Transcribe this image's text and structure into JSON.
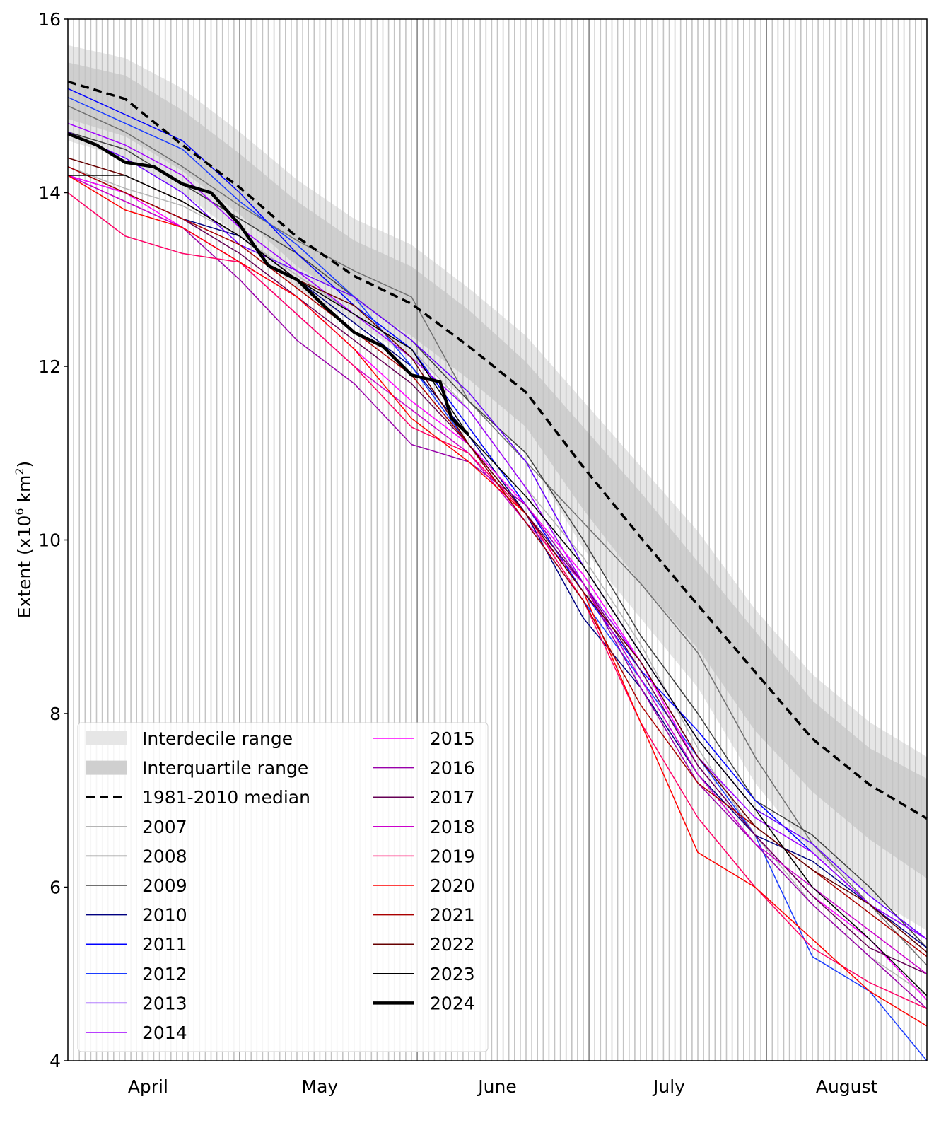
{
  "chart_data": {
    "type": "line",
    "ylabel": "Extent (x10",
    "ylabel_sup": "6",
    "ylabel_unit": " km",
    "ylabel_unit_sup": "2",
    "ylabel_close": ")",
    "ylim": [
      4,
      16
    ],
    "yticks": [
      "4",
      "6",
      "8",
      "10",
      "12",
      "14",
      "16"
    ],
    "x_range": [
      "April 1",
      "August 29"
    ],
    "x_month_labels": [
      "April",
      "May",
      "June",
      "July",
      "August"
    ],
    "grid": "daily vertical lines, darker at month boundaries",
    "legend_position": "lower-left",
    "x_sample_days_since_apr1": [
      0,
      10,
      20,
      30,
      40,
      50,
      60,
      70,
      80,
      90,
      100,
      110,
      120,
      130,
      140,
      150
    ],
    "interdecile": {
      "name": "Interdecile range",
      "color": "#e6e6e6",
      "high": [
        15.7,
        15.55,
        15.2,
        14.7,
        14.15,
        13.7,
        13.4,
        12.9,
        12.35,
        11.6,
        10.85,
        10.1,
        9.2,
        8.45,
        7.9,
        7.5
      ],
      "low": [
        14.6,
        14.4,
        14.0,
        13.5,
        12.9,
        12.5,
        12.1,
        11.6,
        11.0,
        9.9,
        9.1,
        8.3,
        7.2,
        6.4,
        5.9,
        5.5
      ]
    },
    "interquartile": {
      "name": "Interquartile range",
      "color": "#cfcfcf",
      "high": [
        15.5,
        15.35,
        14.95,
        14.45,
        13.9,
        13.45,
        13.15,
        12.65,
        12.05,
        11.3,
        10.55,
        9.75,
        8.95,
        8.15,
        7.6,
        7.25
      ],
      "low": [
        14.85,
        14.65,
        14.25,
        13.75,
        13.15,
        12.75,
        12.35,
        11.85,
        11.3,
        10.35,
        9.5,
        8.75,
        7.8,
        7.1,
        6.55,
        6.1
      ]
    },
    "median": {
      "name": "1981-2010 median",
      "color": "#000000",
      "values": [
        15.28,
        15.08,
        14.55,
        14.06,
        13.49,
        13.04,
        12.72,
        12.23,
        11.7,
        10.84,
        10.03,
        9.25,
        8.48,
        7.71,
        7.18,
        6.79
      ]
    },
    "series": [
      {
        "name": "2007",
        "color": "#b4b4b4",
        "width": 1.5,
        "values": [
          14.3,
          14.05,
          13.85,
          13.5,
          13.05,
          12.6,
          12.2,
          11.5,
          10.6,
          9.8,
          8.8,
          7.6,
          6.6,
          5.8,
          5.2,
          4.75
        ]
      },
      {
        "name": "2008",
        "color": "#707070",
        "width": 1.5,
        "values": [
          15.0,
          14.7,
          14.3,
          13.85,
          13.45,
          13.1,
          12.8,
          11.6,
          10.9,
          10.2,
          9.5,
          8.7,
          7.5,
          6.5,
          5.8,
          5.1
        ]
      },
      {
        "name": "2009",
        "color": "#404040",
        "width": 1.5,
        "values": [
          14.7,
          14.5,
          14.1,
          13.7,
          13.3,
          12.8,
          12.3,
          11.6,
          11.0,
          10.0,
          8.9,
          8.0,
          7.0,
          6.6,
          6.0,
          5.3
        ]
      },
      {
        "name": "2010",
        "color": "#000080",
        "width": 1.5,
        "values": [
          14.2,
          14.0,
          13.7,
          13.5,
          13.0,
          12.5,
          12.0,
          11.2,
          10.3,
          9.1,
          8.3,
          7.3,
          6.6,
          6.3,
          5.8,
          5.3
        ]
      },
      {
        "name": "2011",
        "color": "#0000ff",
        "width": 1.5,
        "values": [
          15.2,
          14.9,
          14.6,
          14.0,
          13.3,
          12.7,
          12.2,
          11.3,
          10.4,
          9.4,
          8.5,
          7.8,
          7.0,
          6.4,
          5.8,
          5.4
        ]
      },
      {
        "name": "2012",
        "color": "#1a3cff",
        "width": 1.5,
        "values": [
          15.1,
          14.8,
          14.5,
          13.9,
          13.4,
          12.8,
          12.0,
          11.1,
          10.2,
          9.3,
          8.4,
          7.5,
          6.6,
          5.2,
          4.8,
          4.0
        ]
      },
      {
        "name": "2013",
        "color": "#6a00ff",
        "width": 1.5,
        "values": [
          14.7,
          14.4,
          14.0,
          13.4,
          13.1,
          12.8,
          12.3,
          11.7,
          10.9,
          9.7,
          8.7,
          7.7,
          6.9,
          6.5,
          5.9,
          5.4
        ]
      },
      {
        "name": "2014",
        "color": "#a000ff",
        "width": 1.5,
        "values": [
          14.8,
          14.55,
          14.2,
          13.6,
          13.1,
          12.6,
          12.1,
          11.5,
          10.6,
          9.5,
          8.6,
          7.5,
          6.8,
          6.4,
          5.8,
          5.4
        ]
      },
      {
        "name": "2015",
        "color": "#ff00ff",
        "width": 1.5,
        "values": [
          14.2,
          14.0,
          13.6,
          13.2,
          12.8,
          12.2,
          11.6,
          11.1,
          10.4,
          9.6,
          8.6,
          7.4,
          6.6,
          5.9,
          5.4,
          4.7
        ]
      },
      {
        "name": "2016",
        "color": "#9900aa",
        "width": 1.5,
        "values": [
          14.2,
          13.9,
          13.6,
          13.0,
          12.3,
          11.8,
          11.1,
          10.9,
          10.4,
          9.5,
          8.3,
          7.2,
          6.5,
          5.8,
          5.2,
          4.6
        ]
      },
      {
        "name": "2017",
        "color": "#660055",
        "width": 1.5,
        "values": [
          14.3,
          14.0,
          13.7,
          13.3,
          12.8,
          12.3,
          11.8,
          11.1,
          10.3,
          9.5,
          8.5,
          7.4,
          6.6,
          5.9,
          5.3,
          5.0
        ]
      },
      {
        "name": "2018",
        "color": "#cc00cc",
        "width": 1.5,
        "values": [
          14.2,
          13.9,
          13.6,
          13.2,
          12.6,
          12.0,
          11.5,
          11.0,
          10.2,
          9.5,
          8.4,
          7.3,
          6.5,
          6.0,
          5.5,
          5.0
        ]
      },
      {
        "name": "2019",
        "color": "#ff0066",
        "width": 1.5,
        "values": [
          14.0,
          13.5,
          13.3,
          13.2,
          12.6,
          12.0,
          11.3,
          11.0,
          10.3,
          9.3,
          7.9,
          6.8,
          6.0,
          5.3,
          4.9,
          4.6
        ]
      },
      {
        "name": "2020",
        "color": "#ff0000",
        "width": 1.5,
        "values": [
          14.2,
          13.8,
          13.6,
          13.2,
          12.8,
          12.2,
          11.4,
          10.9,
          10.3,
          9.4,
          7.9,
          6.4,
          6.0,
          5.4,
          4.8,
          4.4
        ]
      },
      {
        "name": "2021",
        "color": "#aa0000",
        "width": 1.5,
        "values": [
          14.3,
          14.0,
          13.7,
          13.4,
          12.9,
          12.4,
          11.9,
          11.1,
          10.2,
          9.3,
          8.1,
          7.2,
          6.7,
          6.2,
          5.7,
          5.2
        ]
      },
      {
        "name": "2022",
        "color": "#660000",
        "width": 1.5,
        "values": [
          14.4,
          14.2,
          13.9,
          13.5,
          13.0,
          12.7,
          12.1,
          11.1,
          10.3,
          9.4,
          8.6,
          7.5,
          6.7,
          6.2,
          5.8,
          5.25
        ]
      },
      {
        "name": "2023",
        "color": "#000000",
        "width": 1.5,
        "values": [
          14.2,
          14.2,
          13.9,
          13.5,
          13.0,
          12.6,
          12.2,
          11.2,
          10.5,
          9.7,
          8.7,
          7.7,
          6.9,
          6.0,
          5.4,
          4.75
        ]
      },
      {
        "name": "2024",
        "color": "#000000",
        "width": 4.5,
        "days": [
          0,
          5,
          10,
          15,
          20,
          25,
          30,
          35,
          40,
          45,
          50,
          55,
          60,
          65,
          67,
          70
        ],
        "values": [
          14.68,
          14.55,
          14.35,
          14.3,
          14.1,
          14.0,
          13.63,
          13.16,
          13.0,
          12.68,
          12.39,
          12.23,
          11.9,
          11.82,
          11.4,
          11.21
        ]
      }
    ]
  }
}
